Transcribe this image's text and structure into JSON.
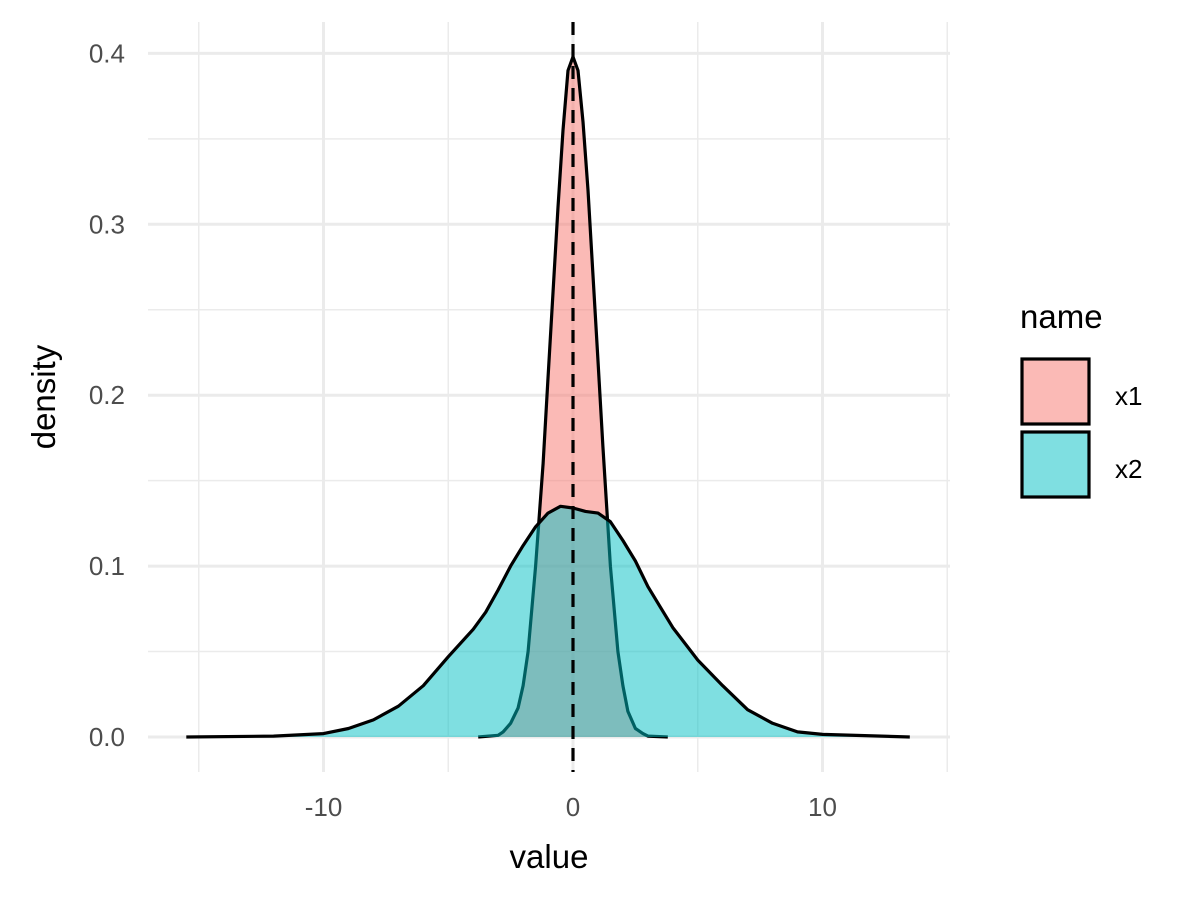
{
  "chart_data": {
    "type": "area",
    "xlabel": "value",
    "ylabel": "density",
    "xlim": [
      -16,
      15
    ],
    "ylim": [
      -0.02,
      0.41
    ],
    "x_ticks": [
      -10,
      0,
      10
    ],
    "x_tick_labels": [
      "-10",
      "0",
      "10"
    ],
    "y_ticks": [
      0.0,
      0.1,
      0.2,
      0.3,
      0.4
    ],
    "y_tick_labels": [
      "0.0",
      "0.1",
      "0.2",
      "0.3",
      "0.4"
    ],
    "grid": true,
    "legend": {
      "title": "name",
      "placement": "right",
      "entries": [
        "x1",
        "x2"
      ]
    },
    "vline": {
      "x": 0,
      "style": "dashed",
      "color": "#000000"
    },
    "series": [
      {
        "name": "x1",
        "fill": "#F8766D",
        "fill_opacity": 0.5,
        "x": [
          -3.8,
          -3.0,
          -2.8,
          -2.5,
          -2.2,
          -2.0,
          -1.8,
          -1.5,
          -1.2,
          -1.0,
          -0.8,
          -0.6,
          -0.4,
          -0.2,
          0.0,
          0.2,
          0.4,
          0.6,
          0.8,
          1.0,
          1.2,
          1.5,
          1.8,
          2.0,
          2.2,
          2.5,
          2.8,
          3.0,
          3.8
        ],
        "y": [
          0.0,
          0.001,
          0.003,
          0.008,
          0.017,
          0.03,
          0.05,
          0.1,
          0.16,
          0.21,
          0.26,
          0.31,
          0.355,
          0.39,
          0.398,
          0.39,
          0.36,
          0.32,
          0.27,
          0.22,
          0.17,
          0.1,
          0.05,
          0.03,
          0.015,
          0.005,
          0.002,
          0.0005,
          0.0
        ]
      },
      {
        "name": "x2",
        "fill": "#00BFC4",
        "fill_opacity": 0.5,
        "x": [
          -15.5,
          -12.0,
          -10.0,
          -9.0,
          -8.0,
          -7.0,
          -6.0,
          -5.0,
          -4.0,
          -3.5,
          -3.0,
          -2.5,
          -2.0,
          -1.5,
          -1.0,
          -0.5,
          0.0,
          0.5,
          1.0,
          1.5,
          2.0,
          2.5,
          3.0,
          3.5,
          4.0,
          5.0,
          6.0,
          7.0,
          8.0,
          9.0,
          10.0,
          13.5
        ],
        "y": [
          0.0,
          0.0005,
          0.002,
          0.005,
          0.01,
          0.018,
          0.03,
          0.047,
          0.063,
          0.073,
          0.086,
          0.1,
          0.112,
          0.123,
          0.131,
          0.135,
          0.134,
          0.132,
          0.131,
          0.126,
          0.115,
          0.103,
          0.088,
          0.076,
          0.064,
          0.045,
          0.03,
          0.016,
          0.008,
          0.003,
          0.0015,
          0.0
        ]
      }
    ]
  }
}
